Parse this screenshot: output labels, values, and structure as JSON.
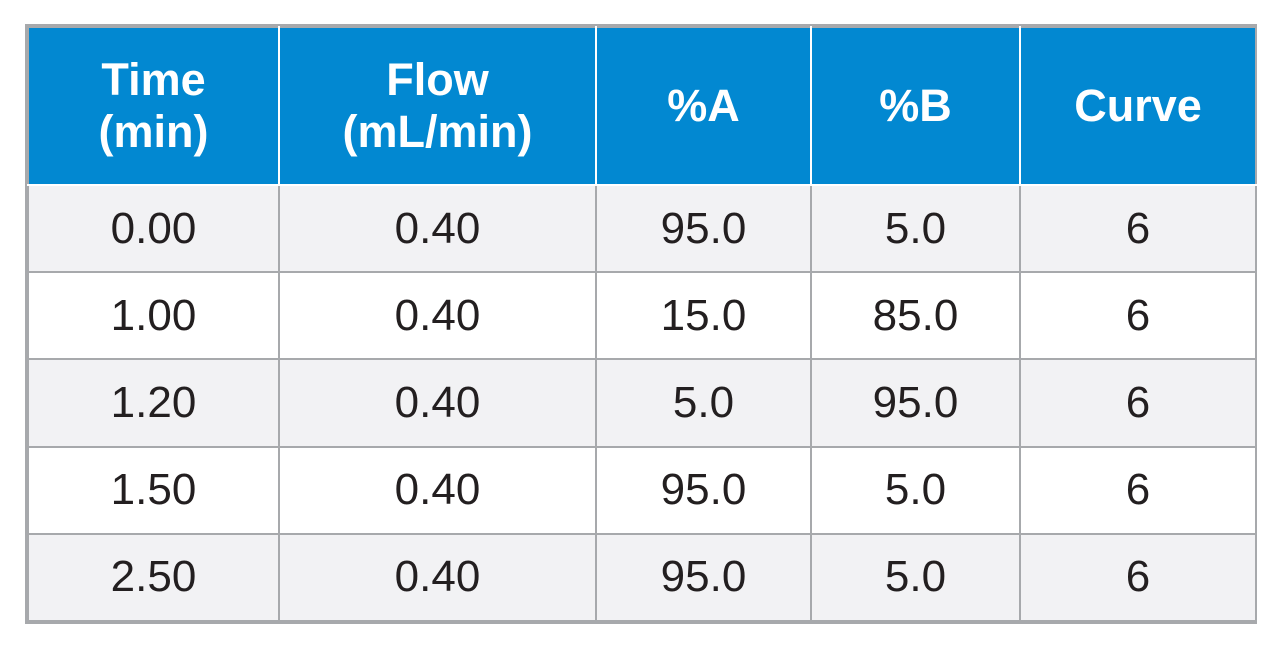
{
  "table": {
    "headers": [
      {
        "line1": "Time",
        "line2": "(min)"
      },
      {
        "line1": "Flow",
        "line2": "(mL/min)"
      },
      {
        "line1": "%A",
        "line2": ""
      },
      {
        "line1": "%B",
        "line2": ""
      },
      {
        "line1": "Curve",
        "line2": ""
      }
    ],
    "rows": [
      [
        "0.00",
        "0.40",
        "95.0",
        "5.0",
        "6"
      ],
      [
        "1.00",
        "0.40",
        "15.0",
        "85.0",
        "6"
      ],
      [
        "1.20",
        "0.40",
        "5.0",
        "95.0",
        "6"
      ],
      [
        "1.50",
        "0.40",
        "95.0",
        "5.0",
        "6"
      ],
      [
        "2.50",
        "0.40",
        "95.0",
        "5.0",
        "6"
      ]
    ]
  },
  "colors": {
    "header_bg": "#0288d1",
    "header_text": "#ffffff",
    "row_alt_bg": "#f2f2f4",
    "row_bg": "#ffffff",
    "border": "#a7a9ac",
    "cell_text": "#231f20"
  }
}
